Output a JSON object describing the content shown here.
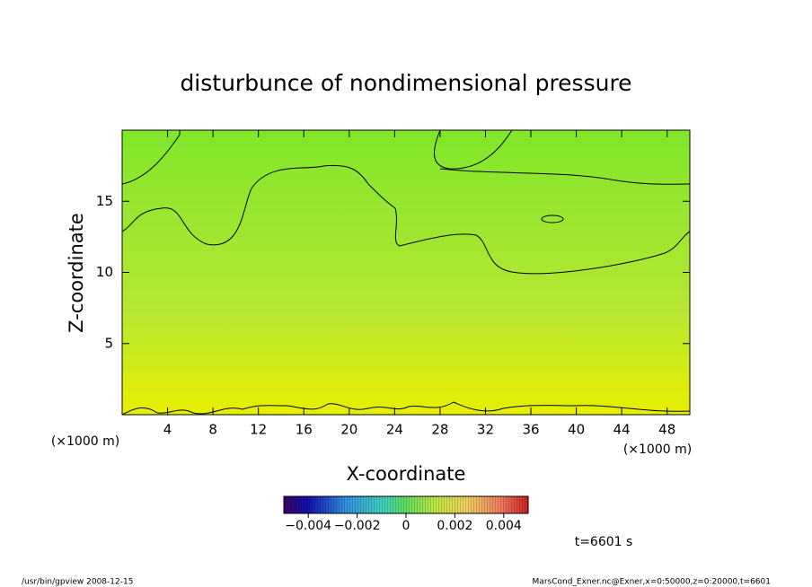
{
  "chart_data": {
    "type": "contour",
    "title": "disturbunce of nondimensional pressure",
    "x_label": "X-coordinate",
    "y_label": "Z-coordinate",
    "x_unit": "(×1000 m)",
    "xlim": [
      0,
      50
    ],
    "xticks": [
      4,
      8,
      12,
      16,
      20,
      24,
      28,
      32,
      36,
      40,
      44,
      48
    ],
    "ylim": [
      0,
      20
    ],
    "yticks": [
      5,
      10,
      15
    ],
    "colorbar": {
      "clim": [
        -0.005,
        0.005
      ],
      "ticks": [
        {
          "value": -0.004,
          "label": "−0.004"
        },
        {
          "value": -0.002,
          "label": "−0.002"
        },
        0,
        0.002,
        0.004
      ]
    },
    "time_label": "t=6601 s"
  },
  "footer": {
    "left": "/usr/bin/gpview   2008-12-15",
    "right": "MarsCond_Exner.nc@Exner,x=0:50000,z=0:20000,t=6601"
  }
}
